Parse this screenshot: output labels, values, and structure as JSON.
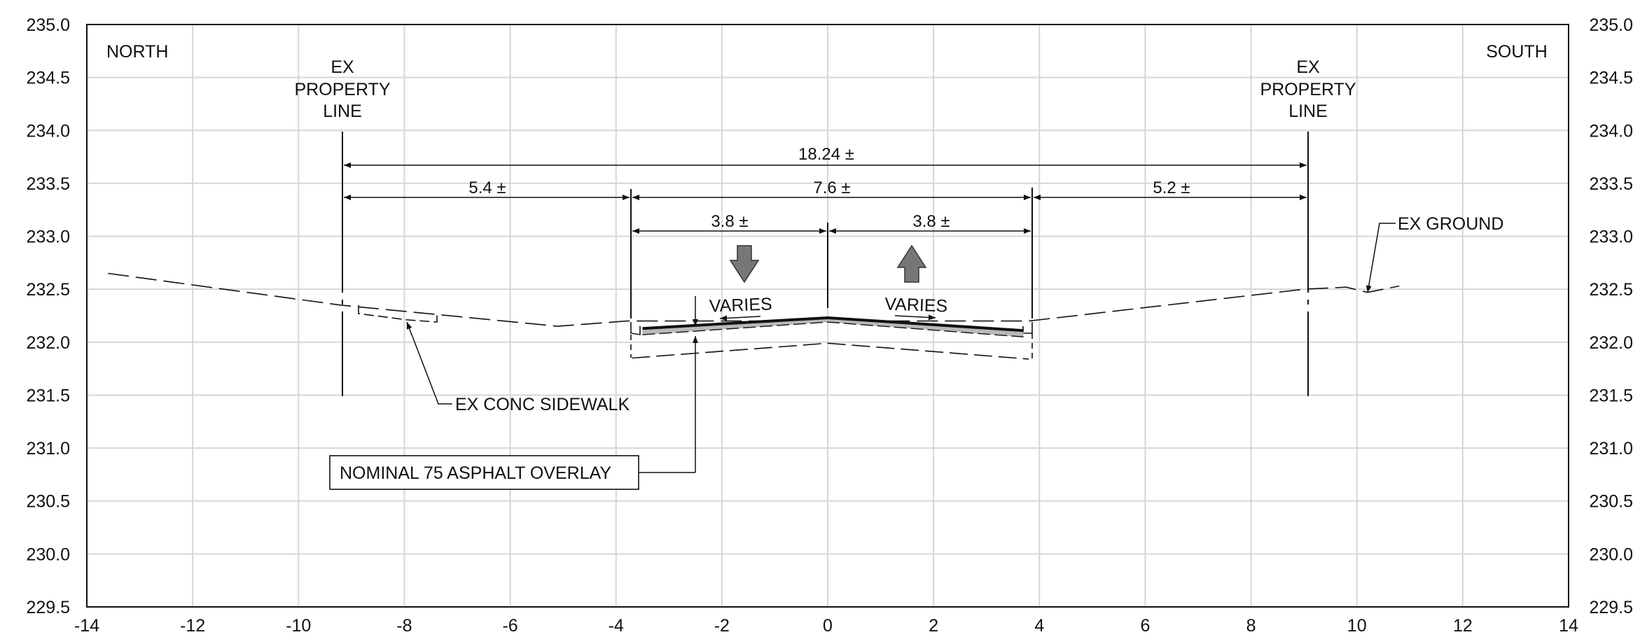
{
  "axes": {
    "x_ticks": [
      "-14",
      "-12",
      "-10",
      "-8",
      "-6",
      "-4",
      "-2",
      "0",
      "2",
      "4",
      "6",
      "8",
      "10",
      "12",
      "14"
    ],
    "y_ticks": [
      "235.0",
      "234.5",
      "234.0",
      "233.5",
      "233.0",
      "232.5",
      "232.0",
      "231.5",
      "231.0",
      "230.5",
      "230.0",
      "229.5"
    ],
    "xlim": [
      -14,
      14
    ],
    "ylim": [
      229.5,
      235.0
    ],
    "grid": true
  },
  "labels": {
    "north": "NORTH",
    "south": "SOUTH",
    "prop_left": [
      "EX",
      "PROPERTY",
      "LINE"
    ],
    "prop_right": [
      "EX",
      "PROPERTY",
      "LINE"
    ],
    "ex_ground": "EX GROUND",
    "sidewalk": "EX CONC SIDEWALK",
    "overlay": "NOMINAL 75 ASPHALT OVERLAY",
    "varies_left": "VARIES",
    "varies_right": "VARIES"
  },
  "dimensions": {
    "total": "18.24 ±",
    "left_boulevard": "5.4 ±",
    "road": "7.6 ±",
    "right_boulevard": "5.2 ±",
    "lane_left": "3.8 ±",
    "lane_right": "3.8 ±"
  },
  "profile": {
    "ex_ground": [
      [
        -13.6,
        232.65
      ],
      [
        -9.2,
        232.35
      ],
      [
        -5.1,
        232.15
      ],
      [
        -3.8,
        232.2
      ],
      [
        3.8,
        232.2
      ],
      [
        9.0,
        232.5
      ],
      [
        9.8,
        232.52
      ],
      [
        10.2,
        232.47
      ],
      [
        10.8,
        232.53
      ]
    ],
    "asphalt_top": [
      [
        -3.5,
        232.13
      ],
      [
        0,
        232.23
      ],
      [
        3.7,
        232.11
      ]
    ],
    "asphalt_bottom": [
      [
        -3.5,
        232.07
      ],
      [
        0,
        232.19
      ],
      [
        3.7,
        232.05
      ]
    ],
    "subgrade": [
      [
        -3.7,
        231.85
      ],
      [
        0,
        231.99
      ],
      [
        3.8,
        231.84
      ]
    ]
  }
}
